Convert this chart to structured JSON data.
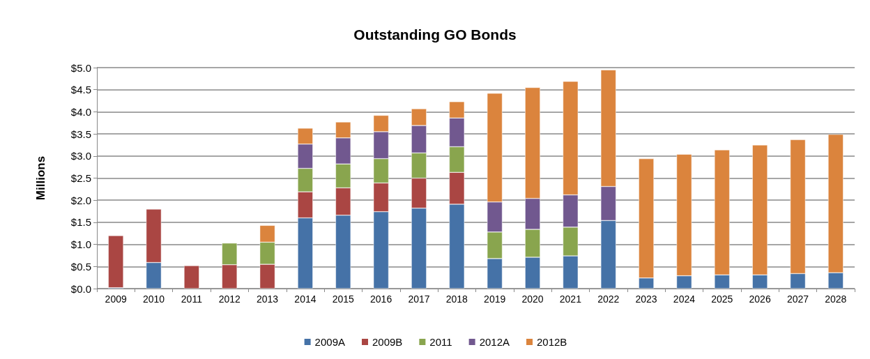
{
  "chart_data": {
    "type": "bar",
    "title": "Outstanding GO Bonds",
    "ylabel": "Millions",
    "stacked": true,
    "grid": "y",
    "legend": "bottom",
    "categories": [
      "2009",
      "2010",
      "2011",
      "2012",
      "2013",
      "2014",
      "2015",
      "2016",
      "2017",
      "2018",
      "2019",
      "2020",
      "2021",
      "2022",
      "2023",
      "2024",
      "2025",
      "2026",
      "2027",
      "2028"
    ],
    "ylim": [
      0,
      5
    ],
    "yticks": [
      {
        "value": 0,
        "label": "$0.0"
      },
      {
        "value": 0.5,
        "label": "$0.5"
      },
      {
        "value": 1,
        "label": "$1.0"
      },
      {
        "value": 1.5,
        "label": "$1.5"
      },
      {
        "value": 2,
        "label": "$2.0"
      },
      {
        "value": 2.5,
        "label": "$2.5"
      },
      {
        "value": 3,
        "label": "$3.0"
      },
      {
        "value": 3.5,
        "label": "$3.5"
      },
      {
        "value": 4,
        "label": "$4.0"
      },
      {
        "value": 4.5,
        "label": "$4.5"
      },
      {
        "value": 5,
        "label": "$5.0"
      }
    ],
    "series": [
      {
        "name": "2009A",
        "color": "#4572a7",
        "values": [
          0.02,
          0.59,
          null,
          null,
          null,
          1.6,
          1.66,
          1.74,
          1.82,
          1.91,
          0.68,
          0.71,
          0.74,
          1.54,
          0.24,
          0.29,
          0.31,
          0.31,
          0.34,
          0.36
        ]
      },
      {
        "name": "2009B",
        "color": "#aa4643",
        "values": [
          1.18,
          1.21,
          0.52,
          0.54,
          0.55,
          0.59,
          0.62,
          0.65,
          0.68,
          0.72,
          null,
          null,
          null,
          null,
          null,
          null,
          null,
          null,
          null,
          null
        ]
      },
      {
        "name": "2011",
        "color": "#89a54e",
        "values": [
          null,
          null,
          null,
          0.49,
          0.5,
          0.53,
          0.54,
          0.55,
          0.57,
          0.58,
          0.6,
          0.63,
          0.65,
          null,
          null,
          null,
          null,
          null,
          null,
          null
        ]
      },
      {
        "name": "2012A",
        "color": "#71588f",
        "values": [
          null,
          null,
          null,
          null,
          null,
          0.55,
          0.59,
          0.61,
          0.62,
          0.65,
          0.68,
          0.7,
          0.73,
          0.77,
          null,
          null,
          null,
          null,
          null,
          null
        ]
      },
      {
        "name": "2012B",
        "color": "#db843d",
        "values": [
          null,
          null,
          null,
          null,
          0.38,
          0.36,
          0.36,
          0.37,
          0.38,
          0.37,
          2.46,
          2.51,
          2.57,
          2.64,
          2.7,
          2.75,
          2.83,
          2.94,
          3.03,
          3.13
        ]
      }
    ]
  }
}
